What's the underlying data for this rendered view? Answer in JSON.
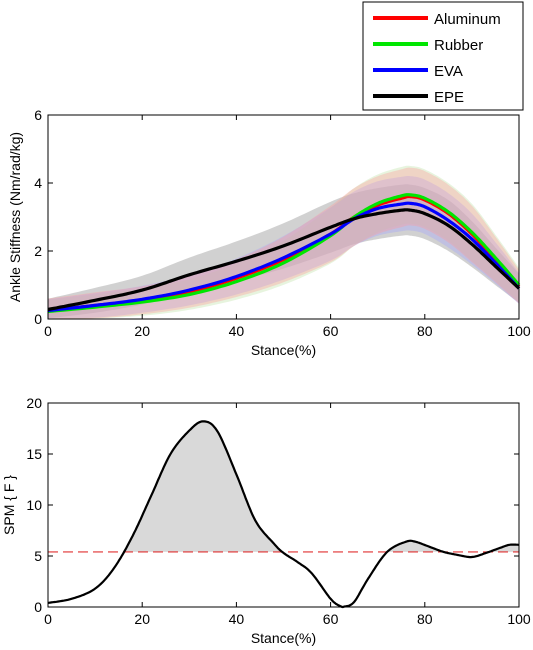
{
  "colors": {
    "aluminum": "#ff0000",
    "rubber": "#00e600",
    "eva": "#0000ff",
    "epe": "#000000",
    "threshold": "#e03030",
    "spm_fill": "#d9d9d9"
  },
  "chart_data": [
    {
      "type": "line",
      "xlabel": "Stance(%)",
      "ylabel": "Ankle Stiffness (Nm/rad/kg)",
      "xlim": [
        0,
        100
      ],
      "ylim": [
        0,
        6
      ],
      "xticks": [
        "0",
        "20",
        "40",
        "60",
        "80",
        "100"
      ],
      "yticks": [
        "0",
        "2",
        "4",
        "6"
      ],
      "legend_position": "top-right, outside axes",
      "x": [
        0,
        10,
        20,
        30,
        40,
        50,
        60,
        65,
        70,
        75,
        77,
        80,
        85,
        90,
        95,
        100
      ],
      "series": [
        {
          "name": "Aluminum",
          "color": "#ff0000",
          "values": [
            0.25,
            0.4,
            0.55,
            0.8,
            1.2,
            1.75,
            2.5,
            3.0,
            3.35,
            3.55,
            3.6,
            3.5,
            3.1,
            2.5,
            1.75,
            0.95
          ],
          "band": 0.85
        },
        {
          "name": "Rubber",
          "color": "#00e600",
          "values": [
            0.22,
            0.35,
            0.5,
            0.72,
            1.1,
            1.65,
            2.45,
            3.0,
            3.4,
            3.62,
            3.65,
            3.55,
            3.15,
            2.55,
            1.8,
            1.0
          ],
          "band": 0.85
        },
        {
          "name": "EVA",
          "color": "#0000ff",
          "values": [
            0.25,
            0.4,
            0.58,
            0.85,
            1.25,
            1.8,
            2.5,
            2.95,
            3.25,
            3.38,
            3.4,
            3.3,
            2.9,
            2.35,
            1.65,
            0.9
          ],
          "band": 0.8
        },
        {
          "name": "EPE",
          "color": "#000000",
          "values": [
            0.28,
            0.55,
            0.85,
            1.3,
            1.7,
            2.15,
            2.7,
            2.95,
            3.1,
            3.2,
            3.2,
            3.1,
            2.75,
            2.2,
            1.55,
            0.9
          ],
          "band": 0.75
        }
      ]
    },
    {
      "type": "line",
      "xlabel": "Stance(%)",
      "ylabel": "SPM { F }",
      "xlim": [
        0,
        100
      ],
      "ylim": [
        0,
        20
      ],
      "xticks": [
        "0",
        "20",
        "40",
        "60",
        "80",
        "100"
      ],
      "yticks": [
        "0",
        "5",
        "10",
        "15",
        "20"
      ],
      "threshold": 5.4,
      "x": [
        0,
        5,
        10,
        14,
        18,
        22,
        26,
        30,
        33,
        36,
        40,
        44,
        48,
        50,
        53,
        56,
        60,
        62,
        63,
        65,
        68,
        72,
        76,
        78,
        81,
        84,
        87,
        90,
        93,
        96,
        98,
        100
      ],
      "values": [
        0.4,
        0.8,
        1.8,
        3.8,
        7.0,
        11.0,
        15.0,
        17.3,
        18.2,
        17.2,
        13.0,
        8.5,
        6.2,
        5.3,
        4.4,
        3.3,
        0.8,
        0.1,
        0.05,
        0.5,
        2.8,
        5.4,
        6.4,
        6.4,
        5.9,
        5.4,
        5.1,
        4.9,
        5.3,
        5.8,
        6.1,
        6.1
      ]
    }
  ]
}
